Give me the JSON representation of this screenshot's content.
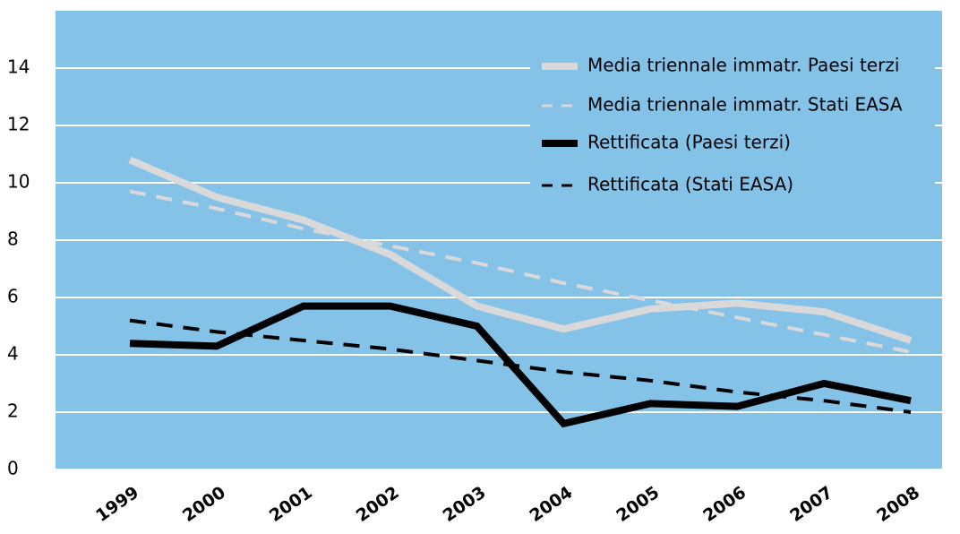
{
  "chart_data": {
    "type": "line",
    "categories": [
      "1999",
      "2000",
      "2001",
      "2002",
      "2003",
      "2004",
      "2005",
      "2006",
      "2007",
      "2008"
    ],
    "series": [
      {
        "name": "Media triennale immatr. Paesi terzi",
        "color": "#d9d9d9",
        "dashed": false,
        "values": [
          10.8,
          9.5,
          8.7,
          7.5,
          5.7,
          4.9,
          5.6,
          5.8,
          5.5,
          4.5
        ]
      },
      {
        "name": "Media triennale immatr. Stati EASA",
        "color": "#d9d9d9",
        "dashed": true,
        "values": [
          9.7,
          9.1,
          8.4,
          7.8,
          7.2,
          6.5,
          5.9,
          5.3,
          4.7,
          4.1
        ]
      },
      {
        "name": "Rettificata (Paesi terzi)",
        "color": "#000000",
        "dashed": false,
        "values": [
          4.4,
          4.3,
          5.7,
          5.7,
          5.0,
          1.6,
          2.3,
          2.2,
          3.0,
          2.4
        ]
      },
      {
        "name": "Rettificata (Stati EASA)",
        "color": "#000000",
        "dashed": true,
        "values": [
          5.2,
          4.8,
          4.5,
          4.2,
          3.8,
          3.4,
          3.1,
          2.7,
          2.4,
          2.0
        ]
      }
    ],
    "ylim": [
      0,
      16
    ],
    "yticks": [
      0,
      2,
      4,
      6,
      8,
      10,
      12,
      14
    ],
    "grid": true,
    "legend": "top-right",
    "background": "#85c2e7"
  }
}
